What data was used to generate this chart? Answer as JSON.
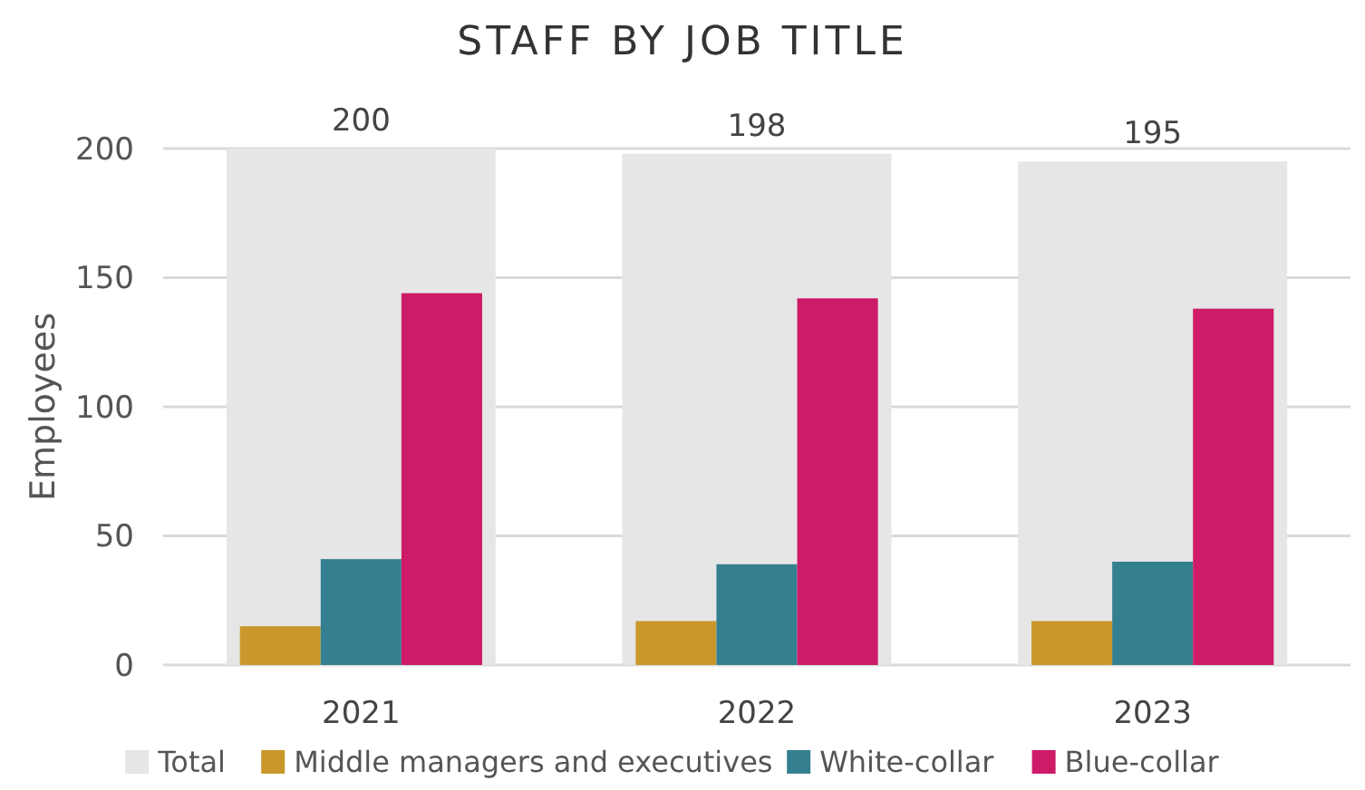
{
  "chart_data": {
    "type": "bar",
    "title": "STAFF BY JOB TITLE",
    "ylabel": "Employees",
    "categories": [
      "2021",
      "2022",
      "2023"
    ],
    "series": [
      {
        "name": "Total",
        "color": "#e6e6e6",
        "values": [
          200,
          198,
          195
        ],
        "value_labels": [
          "200",
          "198",
          "195"
        ]
      },
      {
        "name": "Middle managers and executives",
        "color": "#c9972b",
        "values": [
          15,
          17,
          17
        ]
      },
      {
        "name": "White-collar",
        "color": "#358090",
        "values": [
          41,
          39,
          40
        ]
      },
      {
        "name": "Blue-collar",
        "color": "#cd1b68",
        "values": [
          144,
          142,
          138
        ]
      }
    ],
    "ylim": [
      0,
      200
    ],
    "yticks": [
      0,
      50,
      100,
      150,
      200
    ],
    "grid": "y",
    "legend": "bottom"
  }
}
